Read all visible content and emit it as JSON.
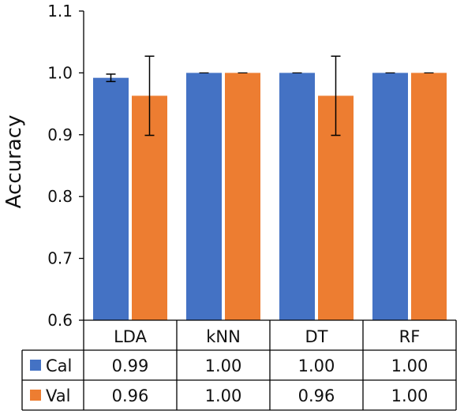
{
  "chart_data": {
    "type": "bar",
    "ylabel": "Accuracy",
    "ylim": [
      0.6,
      1.1
    ],
    "yticks": [
      "0.6",
      "0.7",
      "0.8",
      "0.9",
      "1.0",
      "1.1"
    ],
    "categories": [
      "LDA",
      "kNN",
      "DT",
      "RF"
    ],
    "series": [
      {
        "name": "Cal",
        "color": "#4472C4",
        "values": [
          0.992,
          1.0,
          1.0,
          1.0
        ],
        "errors": [
          0.006,
          0.0,
          0.0,
          0.0
        ],
        "labels": [
          "0.99",
          "1.00",
          "1.00",
          "1.00"
        ]
      },
      {
        "name": "Val",
        "color": "#ED7D31",
        "values": [
          0.963,
          1.0,
          0.963,
          1.0
        ],
        "errors": [
          0.064,
          0.0,
          0.064,
          0.0
        ],
        "labels": [
          "0.96",
          "1.00",
          "0.96",
          "1.00"
        ]
      }
    ],
    "grid": false,
    "legend": "data-table"
  }
}
